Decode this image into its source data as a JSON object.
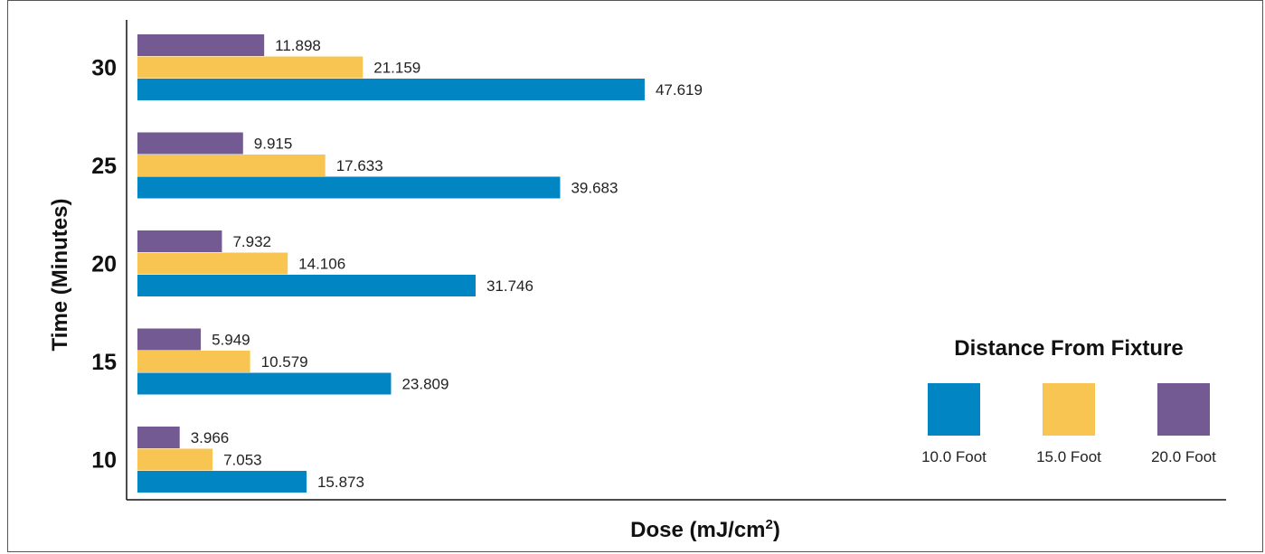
{
  "chart_data": {
    "type": "bar",
    "orientation": "horizontal",
    "ylabel": "Time (Minutes)",
    "xlabel_main": "Dose (mJ/cm",
    "xlabel_sup": "2",
    "xlabel_close": ")",
    "categories": [
      "30",
      "25",
      "20",
      "15",
      "10"
    ],
    "series": [
      {
        "name": "20.0 Foot",
        "color": "#735a92",
        "values": [
          11.898,
          9.915,
          7.932,
          5.949,
          3.966
        ],
        "labels": [
          "11.898",
          "9.915",
          "7.932",
          "5.949",
          "3.966"
        ]
      },
      {
        "name": "15.0 Foot",
        "color": "#f9c552",
        "values": [
          21.159,
          17.633,
          14.106,
          10.579,
          7.053
        ],
        "labels": [
          "21.159",
          "17.633",
          "14.106",
          "10.579",
          "7.053"
        ]
      },
      {
        "name": "10.0 Foot",
        "color": "#0185c3",
        "values": [
          47.619,
          39.683,
          31.746,
          23.809,
          15.873
        ],
        "labels": [
          "47.619",
          "39.683",
          "31.746",
          "23.809",
          "15.873"
        ]
      }
    ],
    "legend": {
      "title": "Distance From Fixture",
      "placement": "bottom-right",
      "order": [
        "10.0 Foot",
        "15.0 Foot",
        "20.0 Foot"
      ]
    },
    "xlim": [
      0,
      100
    ],
    "grid": false
  }
}
